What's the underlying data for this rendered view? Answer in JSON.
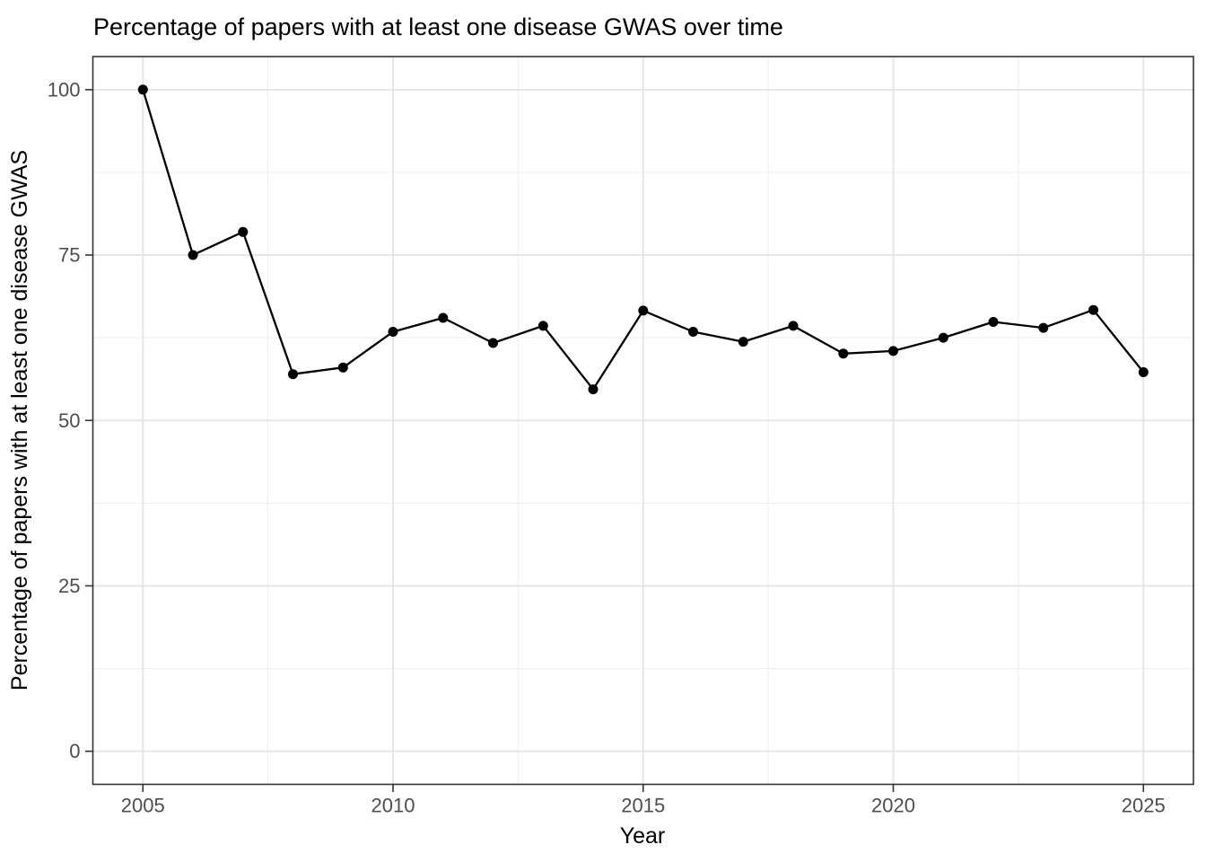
{
  "chart_data": {
    "type": "line",
    "title": "Percentage of papers with at least one disease GWAS over time",
    "xlabel": "Year",
    "ylabel": "Percentage of papers with at least one disease GWAS",
    "x": [
      2005,
      2006,
      2007,
      2008,
      2009,
      2010,
      2011,
      2012,
      2013,
      2014,
      2015,
      2016,
      2017,
      2018,
      2019,
      2020,
      2021,
      2022,
      2023,
      2024,
      2025
    ],
    "y": [
      100,
      75,
      78.5,
      57,
      58,
      63.4,
      65.5,
      61.7,
      64.3,
      54.7,
      66.6,
      63.4,
      61.9,
      64.3,
      60.1,
      60.5,
      62.5,
      64.9,
      64.0,
      66.7,
      57.3
    ],
    "xlim": [
      2004,
      2026
    ],
    "ylim": [
      -5,
      105
    ],
    "x_ticks": [
      2005,
      2010,
      2015,
      2020,
      2025
    ],
    "x_tick_labels": [
      "2005",
      "2010",
      "2015",
      "2020",
      "2025"
    ],
    "y_ticks": [
      0,
      25,
      50,
      75,
      100
    ],
    "y_tick_labels": [
      "0",
      "25",
      "50",
      "75",
      "100"
    ],
    "x_minor_ticks": [
      2007.5,
      2012.5,
      2017.5,
      2022.5
    ],
    "y_minor_ticks": [
      12.5,
      37.5,
      62.5,
      87.5
    ],
    "grid": true,
    "legend": "none",
    "colors": {
      "series": "#000000",
      "point": "#000000",
      "major_grid": "#E6E6E6",
      "minor_grid": "#F0F0F0",
      "panel_border": "#333333",
      "tick_mark": "#333333",
      "tick_text": "#4D4D4D",
      "title_text": "#000000",
      "background": "#FFFFFF"
    }
  }
}
